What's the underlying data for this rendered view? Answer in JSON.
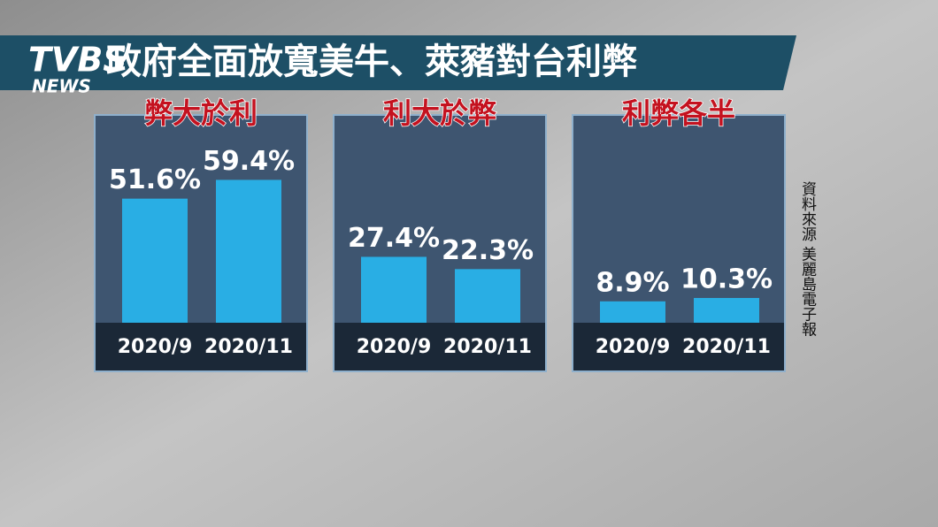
{
  "header": {
    "logo": "TVBS",
    "logo_sub": "NEWS",
    "title": "政府全面放寬美牛、萊豬對台利弊"
  },
  "source": "資料來源 美麗島電子報",
  "chart_data": [
    {
      "type": "bar",
      "title": "弊大於利",
      "categories": [
        "2020/9",
        "2020/11"
      ],
      "values": [
        51.6,
        59.4
      ],
      "value_labels": [
        "51.6%",
        "59.4%"
      ],
      "color": "#29aee4"
    },
    {
      "type": "bar",
      "title": "利大於弊",
      "categories": [
        "2020/9",
        "2020/11"
      ],
      "values": [
        27.4,
        22.3
      ],
      "value_labels": [
        "27.4%",
        "22.3%"
      ],
      "color": "#29aee4"
    },
    {
      "type": "bar",
      "title": "利弊各半",
      "categories": [
        "2020/9",
        "2020/11"
      ],
      "values": [
        8.9,
        10.3
      ],
      "value_labels": [
        "8.9%",
        "10.3%"
      ],
      "color": "#29aee4"
    }
  ]
}
